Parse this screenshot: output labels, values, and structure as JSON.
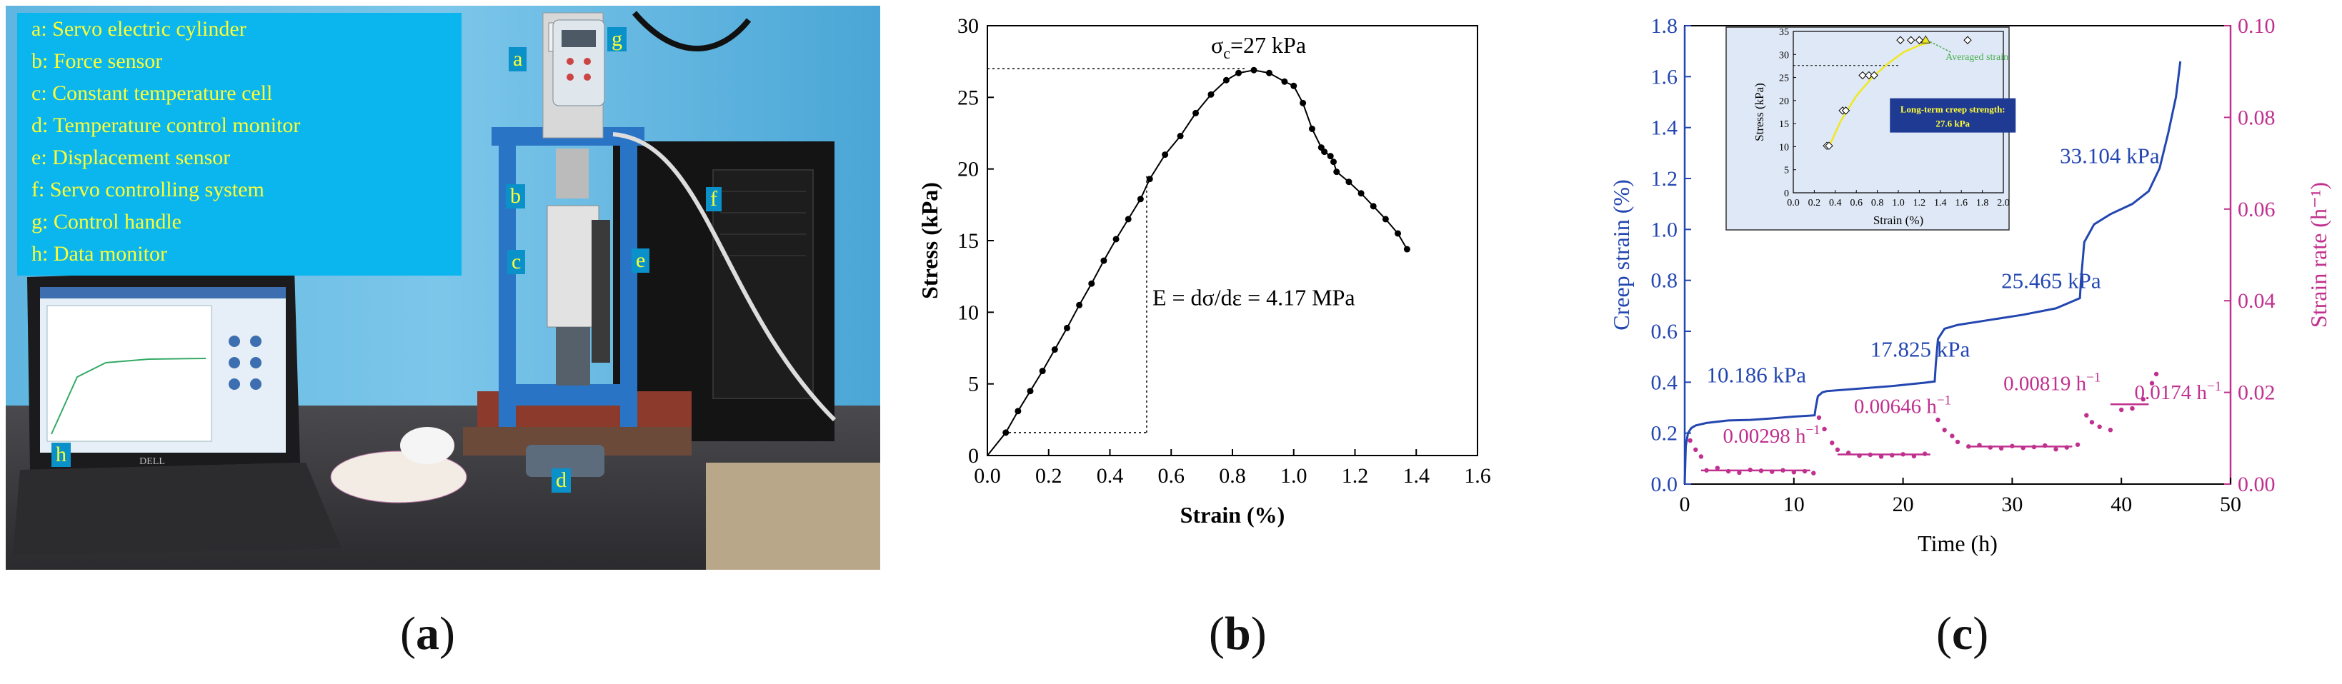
{
  "panel_a": {
    "legend": [
      "a: Servo electric cylinder",
      "b: Force sensor",
      "c: Constant temperature cell",
      "d: Temperature control monitor",
      "e: Displacement sensor",
      "f: Servo controlling system",
      "g: Control handle",
      "h: Data monitor"
    ],
    "tags": [
      "a",
      "b",
      "c",
      "d",
      "e",
      "f",
      "g",
      "h"
    ],
    "laptop_brand": "DELL",
    "colors": {
      "legend_bg": "#0bb5ee",
      "legend_text": "#ffff33",
      "wall": "#5fb6e0",
      "frame": "#2a74c6"
    }
  },
  "panel_labels": {
    "a": {
      "open": "(",
      "letter": "a",
      "close": ")"
    },
    "b": {
      "open": "(",
      "letter": "b",
      "close": ")"
    },
    "c": {
      "open": "(",
      "letter": "c",
      "close": ")"
    }
  },
  "chart_data": [
    {
      "id": "b",
      "type": "line",
      "xlabel": "Strain (%)",
      "ylabel": "Stress (kPa)",
      "xlim": [
        0.0,
        1.6
      ],
      "ylim": [
        0,
        30
      ],
      "xticks": [
        "0.0",
        "0.2",
        "0.4",
        "0.6",
        "0.8",
        "1.0",
        "1.2",
        "1.4",
        "1.6"
      ],
      "yticks": [
        "0",
        "5",
        "10",
        "15",
        "20",
        "25",
        "30"
      ],
      "series": [
        {
          "x": [
            0.0,
            0.06,
            0.1,
            0.14,
            0.18,
            0.22,
            0.26,
            0.3,
            0.34,
            0.38,
            0.42,
            0.46,
            0.5,
            0.53,
            0.58,
            0.63,
            0.68,
            0.73,
            0.78,
            0.82,
            0.87,
            0.92,
            0.97,
            1.0,
            1.03,
            1.06,
            1.09,
            1.1,
            1.12,
            1.13,
            1.14,
            1.18,
            1.22,
            1.26,
            1.3,
            1.34,
            1.37
          ],
          "y": [
            0,
            1.6,
            3.1,
            4.5,
            5.9,
            7.4,
            8.9,
            10.5,
            12.0,
            13.6,
            15.1,
            16.5,
            17.9,
            19.3,
            21.0,
            22.3,
            23.9,
            25.2,
            26.2,
            26.7,
            26.9,
            26.7,
            26.1,
            25.8,
            24.6,
            22.8,
            21.5,
            21.2,
            20.9,
            20.5,
            19.8,
            19.1,
            18.3,
            17.4,
            16.5,
            15.5,
            14.4
          ]
        }
      ],
      "annotations": {
        "peak_label": "σc=27 kPa",
        "peak_y": 27,
        "modulus_label": "E = dσ/dε = 4.17 MPa",
        "modulus_x": [
          0.07,
          0.52
        ],
        "modulus_y": [
          1.6,
          19.5
        ]
      },
      "colors": {
        "line": "#000000",
        "marker": "#000000"
      }
    },
    {
      "id": "c",
      "type": "line",
      "xlabel": "Time (h)",
      "ylabel_left": "Creep strain (%)",
      "ylabel_right": "Strain rate (h⁻¹)",
      "xlim": [
        0,
        50
      ],
      "ylim_left": [
        0.0,
        1.8
      ],
      "ylim_right": [
        0.0,
        0.1
      ],
      "xticks": [
        "0",
        "10",
        "20",
        "30",
        "40",
        "50"
      ],
      "yticks_left": [
        "0.0",
        "0.2",
        "0.4",
        "0.6",
        "0.8",
        "1.0",
        "1.2",
        "1.4",
        "1.6",
        "1.8"
      ],
      "yticks_right": [
        "0.00",
        "0.02",
        "0.04",
        "0.06",
        "0.08",
        "0.10"
      ],
      "series": [
        {
          "name": "Creep strain",
          "x": [
            0,
            0.1,
            0.3,
            0.6,
            1,
            2,
            4,
            6,
            8,
            10,
            11.9,
            12.0,
            12.2,
            12.6,
            13,
            16,
            19,
            22,
            22.9,
            23.0,
            23.2,
            23.8,
            25,
            28,
            31,
            34,
            36.2,
            36.3,
            36.6,
            37.5,
            39,
            41,
            42.5,
            43.5,
            44.3,
            45,
            45.4
          ],
          "y": [
            0,
            0.15,
            0.2,
            0.22,
            0.23,
            0.24,
            0.25,
            0.252,
            0.258,
            0.265,
            0.27,
            0.3,
            0.345,
            0.36,
            0.365,
            0.375,
            0.385,
            0.398,
            0.403,
            0.47,
            0.57,
            0.61,
            0.625,
            0.645,
            0.665,
            0.69,
            0.73,
            0.8,
            0.95,
            1.02,
            1.06,
            1.1,
            1.15,
            1.24,
            1.38,
            1.52,
            1.66
          ]
        },
        {
          "name": "Strain rate",
          "x": [
            0.5,
            1,
            1.5,
            2,
            3,
            4,
            5,
            6,
            7,
            8,
            9,
            10,
            11,
            11.8,
            12.3,
            12.8,
            13.5,
            14,
            15,
            16,
            17,
            18,
            19,
            20,
            21,
            22,
            23.2,
            23.8,
            24.5,
            25,
            26,
            27,
            28,
            29,
            30,
            31,
            32,
            33,
            34,
            35,
            36,
            36.8,
            37.3,
            38,
            39,
            40,
            41,
            42,
            42.8,
            43.2
          ],
          "y": [
            0.0095,
            0.0075,
            0.006,
            0.003,
            0.0035,
            0.0028,
            0.0025,
            0.0031,
            0.0029,
            0.0027,
            0.003,
            0.0026,
            0.0028,
            0.0024,
            0.0145,
            0.012,
            0.009,
            0.0075,
            0.0068,
            0.0062,
            0.0064,
            0.006,
            0.0063,
            0.0065,
            0.0061,
            0.0066,
            0.014,
            0.0118,
            0.0105,
            0.0092,
            0.0082,
            0.0085,
            0.008,
            0.0078,
            0.0083,
            0.0079,
            0.0081,
            0.0084,
            0.0076,
            0.008,
            0.0086,
            0.015,
            0.0135,
            0.0125,
            0.0118,
            0.0162,
            0.0165,
            0.0185,
            0.022,
            0.024
          ]
        }
      ],
      "stage_labels": [
        "10.186 kPa",
        "17.825 kPa",
        "25.465 kPa",
        "33.104 kPa"
      ],
      "rate_labels": [
        "0.00298 h",
        "0.00646 h",
        "0.00819 h",
        "0.0174 h"
      ],
      "rate_exp": "−1",
      "rate_levels": [
        {
          "x": [
            1.5,
            11.5
          ],
          "y": 0.00298
        },
        {
          "x": [
            14.0,
            22.5
          ],
          "y": 0.00646
        },
        {
          "x": [
            26.0,
            35.5
          ],
          "y": 0.00819
        },
        {
          "x": [
            39.0,
            42.5
          ],
          "y": 0.0174
        }
      ],
      "colors": {
        "strain": "#2346b0",
        "rate": "#c0308e",
        "inset_bg": "#dfe8f6",
        "inset_badge": "#1f3a93",
        "badge_text": "#ffff33",
        "fit": "#f0e81c",
        "avg": "#4caf50"
      },
      "inset": {
        "type": "scatter",
        "xlabel": "Strain (%)",
        "ylabel": "Stress (kPa)",
        "xlim": [
          0.0,
          2.0
        ],
        "ylim": [
          0,
          35
        ],
        "xticks": [
          "0.0",
          "0.2",
          "0.4",
          "0.6",
          "0.8",
          "1.0",
          "1.2",
          "1.4",
          "1.6",
          "1.8",
          "2.0"
        ],
        "yticks": [
          "0",
          "5",
          "10",
          "15",
          "20",
          "25",
          "30",
          "35"
        ],
        "hline_y": 27.6,
        "points": [
          {
            "x": 0.32,
            "y": 10.19
          },
          {
            "x": 0.34,
            "y": 10.19
          },
          {
            "x": 0.47,
            "y": 17.83
          },
          {
            "x": 0.5,
            "y": 17.83
          },
          {
            "x": 0.66,
            "y": 25.47
          },
          {
            "x": 0.72,
            "y": 25.47
          },
          {
            "x": 0.77,
            "y": 25.47
          },
          {
            "x": 1.02,
            "y": 33.1
          },
          {
            "x": 1.12,
            "y": 33.1
          },
          {
            "x": 1.2,
            "y": 33.1
          },
          {
            "x": 1.66,
            "y": 33.1
          }
        ],
        "fit_x": [
          0.34,
          0.45,
          0.6,
          0.75,
          0.9,
          1.05,
          1.2,
          1.3
        ],
        "fit_y": [
          10.0,
          15.5,
          21.0,
          25.0,
          28.0,
          30.5,
          32.0,
          32.6
        ],
        "avg_point": {
          "x": 1.26,
          "y": 33.1
        },
        "avg_label": "Averaged strain",
        "badge_lines": [
          "Long-term creep strength:",
          "27.6 kPa"
        ]
      }
    }
  ]
}
